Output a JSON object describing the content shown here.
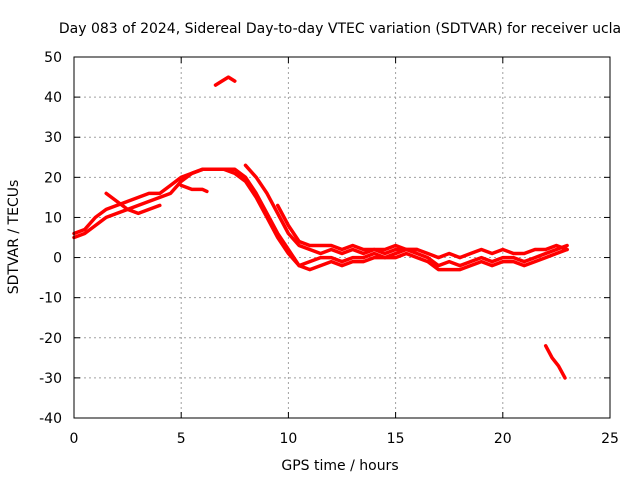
{
  "chart_data": {
    "type": "line",
    "title": "Day 083 of 2024, Sidereal Day-to-day VTEC variation (SDTVAR) for receiver ucla",
    "xlabel": "GPS time / hours",
    "ylabel": "SDTVAR / TECUs",
    "xlim": [
      0,
      25
    ],
    "ylim": [
      -40,
      50
    ],
    "xticks": [
      0,
      5,
      10,
      15,
      20,
      25
    ],
    "yticks": [
      -40,
      -30,
      -20,
      -10,
      0,
      10,
      20,
      30,
      40,
      50
    ],
    "grid": true,
    "series_color": "#ff0000",
    "series": [
      {
        "name": "trace-1",
        "x": [
          0,
          0.5,
          1,
          1.5,
          2,
          2.5,
          3,
          3.5,
          4,
          4.5,
          5,
          5.5,
          6,
          6.5,
          7,
          7.5,
          8,
          8.5,
          9,
          9.5,
          10,
          10.5,
          11,
          11.5,
          12,
          12.5,
          13,
          13.5,
          14,
          14.5,
          15,
          15.5,
          16,
          16.5,
          17,
          17.5,
          18,
          18.5,
          19,
          19.5,
          20,
          20.5,
          21,
          21.5,
          22,
          22.5,
          23
        ],
        "y": [
          6,
          7,
          10,
          12,
          13,
          14,
          15,
          16,
          16,
          18,
          20,
          21,
          22,
          22,
          22,
          21,
          19,
          15,
          10,
          5,
          1,
          -2,
          -1,
          0,
          0,
          -1,
          0,
          0,
          1,
          0,
          1,
          2,
          1,
          0,
          -2,
          -1,
          -2,
          -1,
          0,
          -1,
          0,
          0,
          -1,
          0,
          1,
          2,
          3
        ]
      },
      {
        "name": "trace-2",
        "x": [
          0,
          0.5,
          1,
          1.5,
          2,
          2.5,
          3,
          3.5,
          4,
          4.5,
          5,
          5.5,
          6,
          6.5,
          7,
          7.5,
          8,
          8.5,
          9,
          9.5,
          10,
          10.5,
          11,
          11.5,
          12,
          12.5,
          13,
          13.5,
          14,
          14.5,
          15,
          15.5,
          16,
          16.5,
          17,
          17.5,
          18,
          18.5,
          19,
          19.5,
          20,
          20.5,
          21,
          21.5,
          22,
          22.5,
          23
        ],
        "y": [
          5,
          6,
          8,
          10,
          11,
          12,
          13,
          14,
          15,
          16,
          19,
          21,
          22,
          22,
          22,
          22,
          20,
          16,
          11,
          6,
          2,
          -2,
          -3,
          -2,
          -1,
          -2,
          -1,
          -1,
          0,
          0,
          0,
          1,
          0,
          -1,
          -3,
          -3,
          -3,
          -2,
          -1,
          -2,
          -1,
          -1,
          -2,
          -1,
          0,
          1,
          2
        ]
      },
      {
        "name": "trace-3",
        "x": [
          8,
          8.5,
          9,
          9.5,
          10,
          10.5,
          11,
          11.5,
          12,
          12.5,
          13,
          13.5,
          14,
          14.5,
          15,
          15.5,
          16,
          16.5,
          17,
          17.5,
          18,
          18.5,
          19,
          19.5,
          20,
          20.5,
          21,
          21.5,
          22,
          22.5,
          23
        ],
        "y": [
          23,
          20,
          16,
          11,
          6,
          3,
          2,
          1,
          2,
          1,
          2,
          1,
          2,
          1,
          2,
          2,
          2,
          1,
          0,
          1,
          0,
          1,
          2,
          1,
          2,
          1,
          1,
          2,
          2,
          3,
          2
        ]
      },
      {
        "name": "trace-4",
        "x": [
          9.5,
          10,
          10.5,
          11,
          11.5,
          12,
          12.5,
          13,
          13.5,
          14,
          14.5,
          15,
          15.5,
          16
        ],
        "y": [
          13,
          8,
          4,
          3,
          3,
          3,
          2,
          3,
          2,
          2,
          2,
          3,
          2,
          2
        ]
      },
      {
        "name": "trace-5",
        "x": [
          1.5,
          2,
          2.5,
          3,
          3.5,
          4
        ],
        "y": [
          16,
          14,
          12,
          11,
          12,
          13
        ]
      },
      {
        "name": "trace-6",
        "x": [
          5,
          5.5,
          6,
          6.2
        ],
        "y": [
          18,
          17,
          17,
          16.5
        ]
      },
      {
        "name": "trace-7",
        "x": [
          6.6,
          6.9,
          7.2,
          7.5
        ],
        "y": [
          43,
          44,
          45,
          44
        ]
      },
      {
        "name": "trace-8",
        "x": [
          22,
          22.3,
          22.6,
          22.9
        ],
        "y": [
          -22,
          -25,
          -27,
          -30
        ]
      }
    ]
  }
}
